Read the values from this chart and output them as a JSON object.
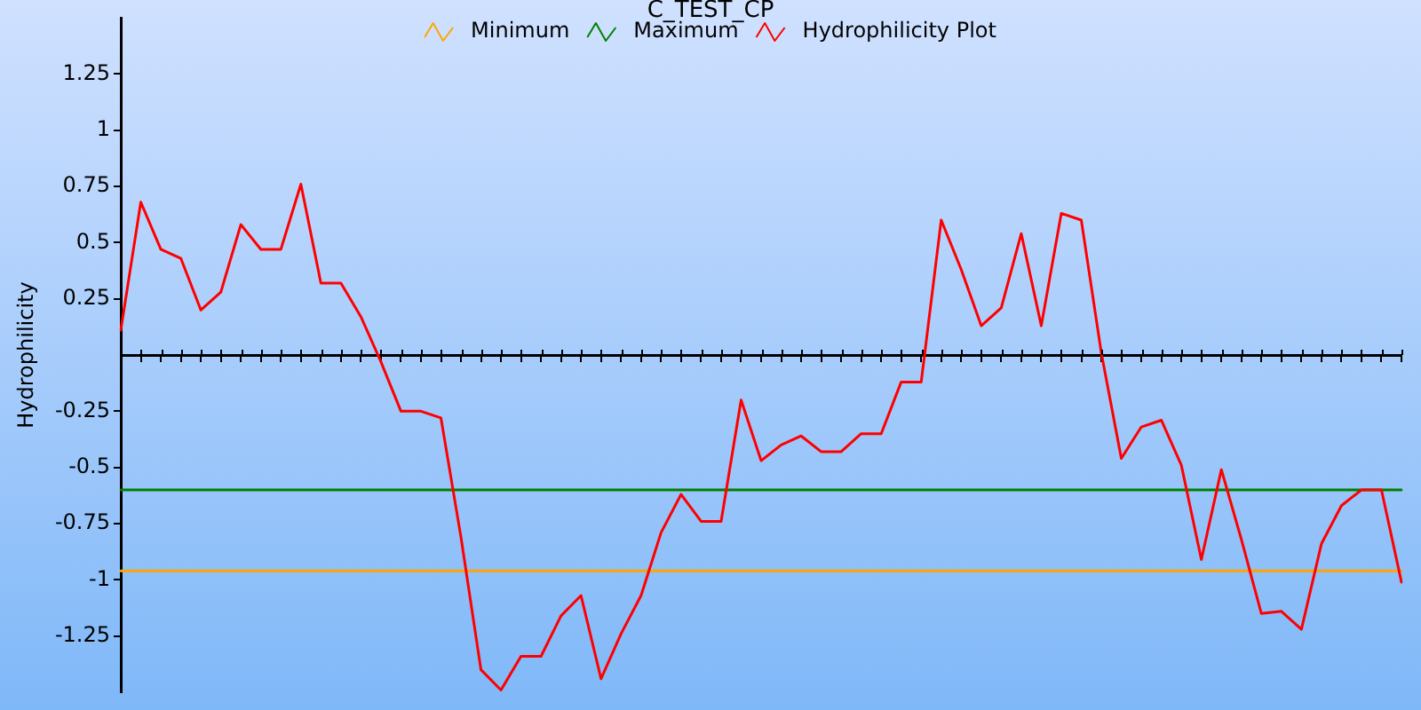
{
  "chart_data": {
    "type": "line",
    "title": "C_TEST_CP",
    "ylabel": "Hydrophilicity",
    "categories": [
      null,
      null,
      null,
      null,
      null,
      null,
      null,
      null,
      null,
      null,
      null,
      null,
      null,
      null,
      null,
      null,
      null,
      null,
      null,
      null,
      null,
      null,
      null,
      null,
      null,
      null,
      null,
      null,
      null,
      null,
      null,
      null,
      null,
      null,
      null,
      null,
      null,
      null,
      null,
      null,
      null,
      null,
      null,
      null,
      null,
      null,
      null,
      null,
      null,
      null,
      null,
      null,
      null,
      null,
      null,
      null,
      null,
      null,
      null,
      null,
      null,
      null,
      null,
      null,
      null
    ],
    "series": [
      {
        "name": "Minimum",
        "color": "#ffa500",
        "values": [
          -0.96,
          -0.96,
          -0.96,
          -0.96,
          -0.96,
          -0.96,
          -0.96,
          -0.96,
          -0.96,
          -0.96,
          -0.96,
          -0.96,
          -0.96,
          -0.96,
          -0.96,
          -0.96,
          -0.96,
          -0.96,
          -0.96,
          -0.96,
          -0.96,
          -0.96,
          -0.96,
          -0.96,
          -0.96,
          -0.96,
          -0.96,
          -0.96,
          -0.96,
          -0.96,
          -0.96,
          -0.96,
          -0.96,
          -0.96,
          -0.96,
          -0.96,
          -0.96,
          -0.96,
          -0.96,
          -0.96,
          -0.96,
          -0.96,
          -0.96,
          -0.96,
          -0.96,
          -0.96,
          -0.96,
          -0.96,
          -0.96,
          -0.96,
          -0.96,
          -0.96,
          -0.96,
          -0.96,
          -0.96,
          -0.96,
          -0.96,
          -0.96,
          -0.96,
          -0.96,
          -0.96,
          -0.96,
          -0.96,
          -0.96,
          -0.96
        ]
      },
      {
        "name": "Maximum",
        "color": "#008000",
        "values": [
          -0.6,
          -0.6,
          -0.6,
          -0.6,
          -0.6,
          -0.6,
          -0.6,
          -0.6,
          -0.6,
          -0.6,
          -0.6,
          -0.6,
          -0.6,
          -0.6,
          -0.6,
          -0.6,
          -0.6,
          -0.6,
          -0.6,
          -0.6,
          -0.6,
          -0.6,
          -0.6,
          -0.6,
          -0.6,
          -0.6,
          -0.6,
          -0.6,
          -0.6,
          -0.6,
          -0.6,
          -0.6,
          -0.6,
          -0.6,
          -0.6,
          -0.6,
          -0.6,
          -0.6,
          -0.6,
          -0.6,
          -0.6,
          -0.6,
          -0.6,
          -0.6,
          -0.6,
          -0.6,
          -0.6,
          -0.6,
          -0.6,
          -0.6,
          -0.6,
          -0.6,
          -0.6,
          -0.6,
          -0.6,
          -0.6,
          -0.6,
          -0.6,
          -0.6,
          -0.6,
          -0.6,
          -0.6,
          -0.6,
          -0.6,
          -0.6
        ]
      },
      {
        "name": "Hydrophilicity Plot",
        "color": "#ff0000",
        "values": [
          0.11,
          0.68,
          0.47,
          0.43,
          0.2,
          0.28,
          0.58,
          0.47,
          0.47,
          0.76,
          0.32,
          0.32,
          0.17,
          -0.03,
          -0.25,
          -0.25,
          -0.28,
          -0.81,
          -1.4,
          -1.49,
          -1.34,
          -1.34,
          -1.16,
          -1.07,
          -1.44,
          -1.24,
          -1.07,
          -0.79,
          -0.62,
          -0.74,
          -0.74,
          -0.2,
          -0.47,
          -0.4,
          -0.36,
          -0.43,
          -0.43,
          -0.35,
          -0.35,
          -0.12,
          -0.12,
          0.6,
          0.38,
          0.13,
          0.21,
          0.54,
          0.13,
          0.63,
          0.6,
          0.01,
          -0.46,
          -0.32,
          -0.29,
          -0.49,
          -0.91,
          -0.51,
          -0.82,
          -1.15,
          -1.14,
          -1.22,
          -0.84,
          -0.67,
          -0.6,
          -0.6,
          -1.01
        ]
      }
    ],
    "ylim": [
      -1.5,
      1.5
    ],
    "yticks": [
      -1.25,
      -1,
      -0.75,
      -0.5,
      -0.25,
      0.25,
      0.5,
      0.75,
      1,
      1.25
    ],
    "legend": "top",
    "tick_labels": "y"
  }
}
